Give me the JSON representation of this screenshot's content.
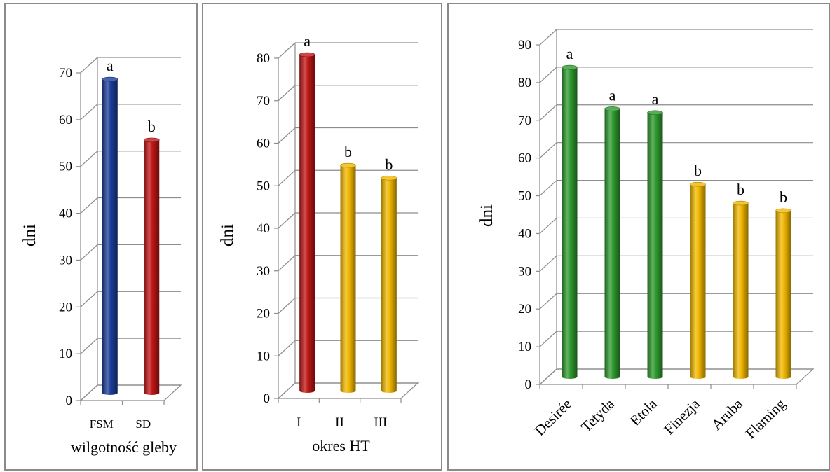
{
  "chart_data": [
    {
      "type": "bar",
      "categories": [
        "FSM",
        "SD"
      ],
      "values": [
        67,
        54
      ],
      "letters": [
        "a",
        "b"
      ],
      "colors": [
        "#1c3d99",
        "#c01616"
      ],
      "xlabel": "wilgotność gleby",
      "ylabel": "dni",
      "ylim": [
        0,
        70
      ],
      "yticks": [
        "0",
        "10",
        "20",
        "30",
        "40",
        "50",
        "60",
        "70"
      ],
      "grid": true
    },
    {
      "type": "bar",
      "categories": [
        "I",
        "II",
        "III"
      ],
      "values": [
        79,
        53,
        50
      ],
      "letters": [
        "a",
        "b",
        "b"
      ],
      "colors": [
        "#c01616",
        "#f2b800",
        "#f2b800"
      ],
      "xlabel": "okres HT",
      "ylabel": "dni",
      "ylim": [
        0,
        80
      ],
      "yticks": [
        "0",
        "10",
        "20",
        "30",
        "40",
        "50",
        "60",
        "70",
        "80"
      ],
      "grid": true
    },
    {
      "type": "bar",
      "categories": [
        "Desirée",
        "Tetyda",
        "Etola",
        "Finezja",
        "Aruba",
        "Flaming"
      ],
      "values": [
        82,
        71,
        70,
        51,
        46,
        44
      ],
      "letters": [
        "a",
        "a",
        "a",
        "b",
        "b",
        "b"
      ],
      "colors": [
        "#2e9a2e",
        "#2e9a2e",
        "#2e9a2e",
        "#f2b800",
        "#f2b800",
        "#f2b800"
      ],
      "xlabel": "",
      "ylabel": "dni",
      "ylim": [
        0,
        90
      ],
      "yticks": [
        "0",
        "10",
        "20",
        "30",
        "40",
        "50",
        "60",
        "70",
        "80",
        "90"
      ],
      "grid": true
    }
  ]
}
